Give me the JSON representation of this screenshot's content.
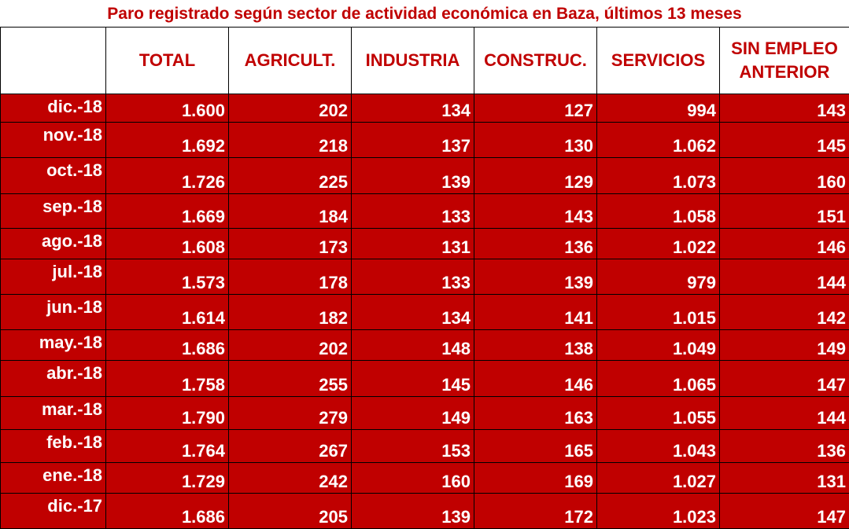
{
  "title": "Paro registrado según sector de actividad económica en Baza, últimos 13 meses",
  "colors": {
    "accent": "#c00000",
    "text_on_accent": "#ffffff",
    "border": "#000000"
  },
  "columns": [
    "",
    "TOTAL",
    "AGRICULT.",
    "INDUSTRIA",
    "CONSTRUC.",
    "SERVICIOS",
    "SIN EMPLEO ANTERIOR"
  ],
  "rows": [
    {
      "month": "dic.-18",
      "total": "1.600",
      "agricult": "202",
      "industria": "134",
      "construc": "127",
      "servicios": "994",
      "sin_empleo": "143"
    },
    {
      "month": "nov.-18",
      "total": "1.692",
      "agricult": "218",
      "industria": "137",
      "construc": "130",
      "servicios": "1.062",
      "sin_empleo": "145"
    },
    {
      "month": "oct.-18",
      "total": "1.726",
      "agricult": "225",
      "industria": "139",
      "construc": "129",
      "servicios": "1.073",
      "sin_empleo": "160"
    },
    {
      "month": "sep.-18",
      "total": "1.669",
      "agricult": "184",
      "industria": "133",
      "construc": "143",
      "servicios": "1.058",
      "sin_empleo": "151"
    },
    {
      "month": "ago.-18",
      "total": "1.608",
      "agricult": "173",
      "industria": "131",
      "construc": "136",
      "servicios": "1.022",
      "sin_empleo": "146"
    },
    {
      "month": "jul.-18",
      "total": "1.573",
      "agricult": "178",
      "industria": "133",
      "construc": "139",
      "servicios": "979",
      "sin_empleo": "144"
    },
    {
      "month": "jun.-18",
      "total": "1.614",
      "agricult": "182",
      "industria": "134",
      "construc": "141",
      "servicios": "1.015",
      "sin_empleo": "142"
    },
    {
      "month": "may.-18",
      "total": "1.686",
      "agricult": "202",
      "industria": "148",
      "construc": "138",
      "servicios": "1.049",
      "sin_empleo": "149"
    },
    {
      "month": "abr.-18",
      "total": "1.758",
      "agricult": "255",
      "industria": "145",
      "construc": "146",
      "servicios": "1.065",
      "sin_empleo": "147"
    },
    {
      "month": "mar.-18",
      "total": "1.790",
      "agricult": "279",
      "industria": "149",
      "construc": "163",
      "servicios": "1.055",
      "sin_empleo": "144"
    },
    {
      "month": "feb.-18",
      "total": "1.764",
      "agricult": "267",
      "industria": "153",
      "construc": "165",
      "servicios": "1.043",
      "sin_empleo": "136"
    },
    {
      "month": "ene.-18",
      "total": "1.729",
      "agricult": "242",
      "industria": "160",
      "construc": "169",
      "servicios": "1.027",
      "sin_empleo": "131"
    },
    {
      "month": "dic.-17",
      "total": "1.686",
      "agricult": "205",
      "industria": "139",
      "construc": "172",
      "servicios": "1.023",
      "sin_empleo": "147"
    }
  ]
}
